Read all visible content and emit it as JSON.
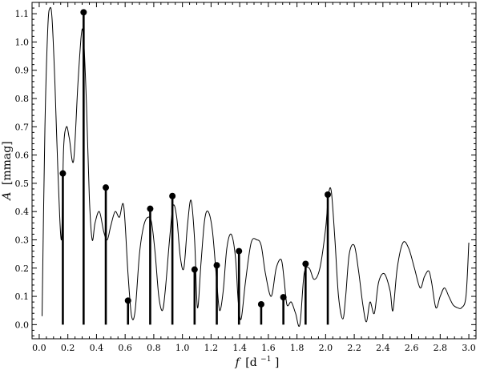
{
  "chart_data": {
    "type": "line",
    "xlabel_main": "f",
    "xlabel_unit": "[d",
    "xlabel_exp": "−1",
    "xlabel_close": "]",
    "ylabel_main": "A",
    "ylabel_unit": "[mmag]",
    "xlim": [
      -0.05,
      3.05
    ],
    "ylim": [
      -0.05,
      1.14
    ],
    "xticks": [
      0.0,
      0.2,
      0.4,
      0.6,
      0.8,
      1.0,
      1.2,
      1.4,
      1.6,
      1.8,
      2.0,
      2.2,
      2.4,
      2.6,
      2.8,
      3.0
    ],
    "xtick_labels": [
      "0.0",
      "0.2",
      "0.4",
      "0.6",
      "0.8",
      "1.0",
      "1.2",
      "1.4",
      "1.6",
      "1.8",
      "2.0",
      "2.2",
      "2.4",
      "2.6",
      "2.8",
      "3.0"
    ],
    "yticks": [
      0.0,
      0.1,
      0.2,
      0.3,
      0.4,
      0.5,
      0.6,
      0.7,
      0.8,
      0.9,
      1.0,
      1.1
    ],
    "ytick_labels": [
      "0.0",
      "0.1",
      "0.2",
      "0.3",
      "0.4",
      "0.5",
      "0.6",
      "0.7",
      "0.8",
      "0.9",
      "1.0",
      "1.1"
    ],
    "grid": false,
    "series": [
      {
        "kind": "spectrum",
        "x": [
          0.02,
          0.04,
          0.06,
          0.075,
          0.09,
          0.11,
          0.13,
          0.155,
          0.17,
          0.19,
          0.21,
          0.24,
          0.27,
          0.295,
          0.31,
          0.33,
          0.35,
          0.37,
          0.39,
          0.42,
          0.45,
          0.475,
          0.5,
          0.53,
          0.56,
          0.59,
          0.62,
          0.645,
          0.67,
          0.7,
          0.73,
          0.76,
          0.785,
          0.81,
          0.835,
          0.86,
          0.88,
          0.91,
          0.935,
          0.96,
          0.985,
          1.01,
          1.035,
          1.06,
          1.085,
          1.105,
          1.13,
          1.155,
          1.18,
          1.21,
          1.24,
          1.26,
          1.285,
          1.31,
          1.34,
          1.37,
          1.39,
          1.41,
          1.44,
          1.48,
          1.52,
          1.55,
          1.58,
          1.62,
          1.655,
          1.69,
          1.71,
          1.73,
          1.76,
          1.79,
          1.82,
          1.85,
          1.885,
          1.92,
          1.96,
          2.0,
          2.02,
          2.04,
          2.065,
          2.09,
          2.12,
          2.14,
          2.165,
          2.2,
          2.23,
          2.26,
          2.285,
          2.31,
          2.34,
          2.37,
          2.41,
          2.45,
          2.47,
          2.5,
          2.54,
          2.58,
          2.62,
          2.66,
          2.69,
          2.72,
          2.74,
          2.77,
          2.8,
          2.83,
          2.86,
          2.89,
          2.92,
          2.95,
          2.98,
          3.0
        ],
        "y": [
          0.03,
          0.7,
          1.05,
          1.12,
          1.08,
          0.85,
          0.55,
          0.3,
          0.62,
          0.7,
          0.66,
          0.58,
          0.85,
          1.03,
          1.01,
          0.78,
          0.45,
          0.3,
          0.36,
          0.4,
          0.33,
          0.3,
          0.35,
          0.4,
          0.38,
          0.42,
          0.18,
          0.03,
          0.05,
          0.25,
          0.35,
          0.38,
          0.36,
          0.25,
          0.1,
          0.05,
          0.12,
          0.3,
          0.42,
          0.38,
          0.24,
          0.2,
          0.35,
          0.44,
          0.3,
          0.06,
          0.22,
          0.37,
          0.4,
          0.33,
          0.15,
          0.05,
          0.12,
          0.27,
          0.32,
          0.24,
          0.08,
          0.02,
          0.15,
          0.29,
          0.3,
          0.28,
          0.18,
          0.1,
          0.2,
          0.23,
          0.16,
          0.07,
          0.08,
          0.04,
          0.0,
          0.18,
          0.2,
          0.16,
          0.2,
          0.34,
          0.46,
          0.47,
          0.3,
          0.1,
          0.02,
          0.1,
          0.25,
          0.28,
          0.19,
          0.07,
          0.01,
          0.08,
          0.04,
          0.15,
          0.18,
          0.12,
          0.05,
          0.2,
          0.29,
          0.27,
          0.2,
          0.13,
          0.17,
          0.19,
          0.15,
          0.06,
          0.1,
          0.13,
          0.1,
          0.07,
          0.06,
          0.06,
          0.1,
          0.29
        ]
      },
      {
        "kind": "stems",
        "x": [
          0.165,
          0.31,
          0.465,
          0.62,
          0.775,
          0.93,
          1.085,
          1.24,
          1.395,
          1.55,
          1.705,
          1.86,
          2.015
        ],
        "y": [
          0.535,
          1.105,
          0.485,
          0.085,
          0.41,
          0.455,
          0.195,
          0.21,
          0.26,
          0.072,
          0.097,
          0.215,
          0.46
        ]
      }
    ]
  }
}
